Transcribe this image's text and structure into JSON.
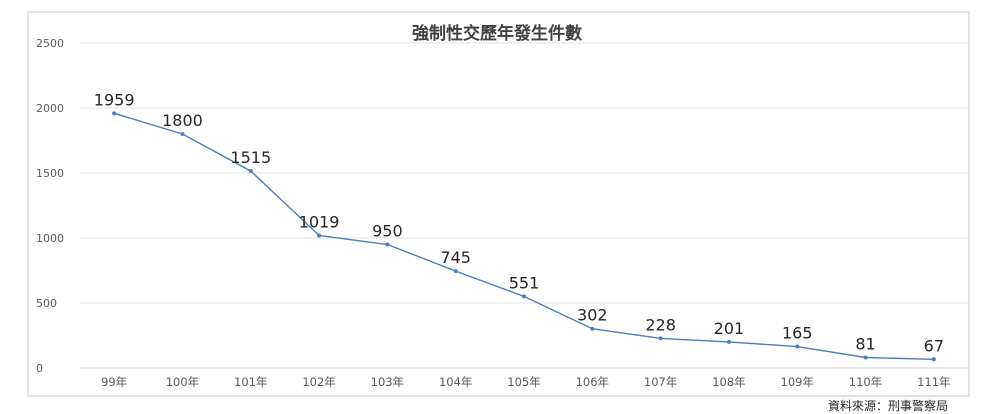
{
  "chart_data": {
    "type": "line",
    "title": "強制性交歷年發生件數",
    "categories": [
      "99年",
      "100年",
      "101年",
      "102年",
      "103年",
      "104年",
      "105年",
      "106年",
      "107年",
      "108年",
      "109年",
      "110年",
      "111年"
    ],
    "values": [
      1959,
      1800,
      1515,
      1019,
      950,
      745,
      551,
      302,
      228,
      201,
      165,
      81,
      67
    ],
    "data_labels": [
      "1959",
      "1800",
      "1515",
      "1019",
      "950",
      "745",
      "551",
      "302",
      "228",
      "201",
      "165",
      "81",
      "67"
    ],
    "yticks": [
      "0",
      "500",
      "1000",
      "1500",
      "2000",
      "2500"
    ],
    "ylim": [
      0,
      2500
    ],
    "grid": true,
    "legend": "none",
    "series_color": "#4a7ebb"
  },
  "source": "資料來源：刑事警察局"
}
